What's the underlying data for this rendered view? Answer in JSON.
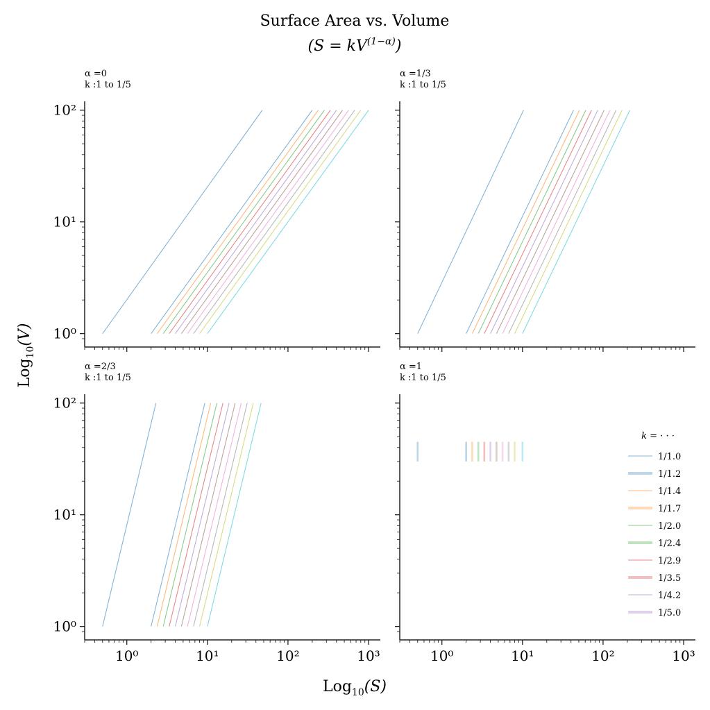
{
  "figure": {
    "title_line1": "Surface Area vs. Volume",
    "title_line2": "(S = kV",
    "title_line2_sup": "(1−α)",
    "title_line2_end": ")",
    "xlabel": "Log",
    "xlabel_sub": "10",
    "xlabel_arg": "(S)",
    "ylabel": "Log",
    "ylabel_sub": "10",
    "ylabel_arg": "(V)"
  },
  "legend": {
    "title": "k = · · ·",
    "entries": [
      "1/1.0",
      "1/1.2",
      "1/1.4",
      "1/1.7",
      "1/2.0",
      "1/2.4",
      "1/2.9",
      "1/3.5",
      "1/4.2",
      "1/5.0"
    ]
  },
  "colors": {
    "palette": [
      "#1f77b4",
      "#ff7f0e",
      "#2ca02c",
      "#d62728",
      "#9467bd",
      "#8c564b",
      "#e377c2",
      "#7f7f7f",
      "#bcbd22",
      "#17becf"
    ],
    "axis": "#222222"
  },
  "chart_data": [
    {
      "type": "line",
      "panel_title_alpha": "α =0",
      "panel_title_k": "k :1 to 1/5",
      "alpha": 0,
      "x_scale": "log",
      "y_scale": "log",
      "xlim": [
        0.3,
        1400
      ],
      "ylim": [
        0.85,
        120
      ],
      "xticks": [
        "10⁰",
        "10¹",
        "10²",
        "10³"
      ],
      "yticks": [
        "10⁰",
        "10¹",
        "10²"
      ],
      "series": [
        {
          "x": [
            0.5,
            48
          ],
          "y": [
            1,
            100
          ]
        },
        {
          "x": [
            2.0,
            200
          ],
          "y": [
            1,
            100
          ]
        },
        {
          "x": [
            2.38,
            238
          ],
          "y": [
            1,
            100
          ]
        },
        {
          "x": [
            2.83,
            283
          ],
          "y": [
            1,
            100
          ]
        },
        {
          "x": [
            3.36,
            336
          ],
          "y": [
            1,
            100
          ]
        },
        {
          "x": [
            4.0,
            400
          ],
          "y": [
            1,
            100
          ]
        },
        {
          "x": [
            4.76,
            476
          ],
          "y": [
            1,
            100
          ]
        },
        {
          "x": [
            5.66,
            566
          ],
          "y": [
            1,
            100
          ]
        },
        {
          "x": [
            6.73,
            673
          ],
          "y": [
            1,
            100
          ]
        },
        {
          "x": [
            8.0,
            800
          ],
          "y": [
            1,
            100
          ]
        },
        {
          "x": [
            10,
            1000
          ],
          "y": [
            1,
            100
          ]
        }
      ]
    },
    {
      "type": "line",
      "panel_title_alpha": "α =1/3",
      "panel_title_k": "k :1 to 1/5",
      "alpha": 0.333,
      "x_scale": "log",
      "y_scale": "log",
      "xlim": [
        0.3,
        1400
      ],
      "ylim": [
        0.85,
        120
      ],
      "xticks": [
        "10⁰",
        "10¹",
        "10²",
        "10³"
      ],
      "yticks": [
        "10⁰",
        "10¹",
        "10²"
      ],
      "series": [
        {
          "x": [
            0.5,
            10.3
          ],
          "y": [
            1,
            100
          ]
        },
        {
          "x": [
            2.0,
            43
          ],
          "y": [
            1,
            100
          ]
        },
        {
          "x": [
            2.38,
            51
          ],
          "y": [
            1,
            100
          ]
        },
        {
          "x": [
            2.83,
            61
          ],
          "y": [
            1,
            100
          ]
        },
        {
          "x": [
            3.36,
            72
          ],
          "y": [
            1,
            100
          ]
        },
        {
          "x": [
            4.0,
            86
          ],
          "y": [
            1,
            100
          ]
        },
        {
          "x": [
            4.76,
            103
          ],
          "y": [
            1,
            100
          ]
        },
        {
          "x": [
            5.66,
            122
          ],
          "y": [
            1,
            100
          ]
        },
        {
          "x": [
            6.73,
            145
          ],
          "y": [
            1,
            100
          ]
        },
        {
          "x": [
            8.0,
            172
          ],
          "y": [
            1,
            100
          ]
        },
        {
          "x": [
            10,
            215
          ],
          "y": [
            1,
            100
          ]
        }
      ]
    },
    {
      "type": "line",
      "panel_title_alpha": "α =2/3",
      "panel_title_k": "k :1 to 1/5",
      "alpha": 0.667,
      "x_scale": "log",
      "y_scale": "log",
      "xlim": [
        0.3,
        1400
      ],
      "ylim": [
        0.85,
        120
      ],
      "xticks": [
        "10⁰",
        "10¹",
        "10²",
        "10³"
      ],
      "yticks": [
        "10⁰",
        "10¹",
        "10²"
      ],
      "series": [
        {
          "x": [
            0.5,
            2.3
          ],
          "y": [
            1,
            100
          ]
        },
        {
          "x": [
            2.0,
            9.3
          ],
          "y": [
            1,
            100
          ]
        },
        {
          "x": [
            2.38,
            11.0
          ],
          "y": [
            1,
            100
          ]
        },
        {
          "x": [
            2.83,
            13.1
          ],
          "y": [
            1,
            100
          ]
        },
        {
          "x": [
            3.36,
            15.6
          ],
          "y": [
            1,
            100
          ]
        },
        {
          "x": [
            4.0,
            18.6
          ],
          "y": [
            1,
            100
          ]
        },
        {
          "x": [
            4.76,
            22.1
          ],
          "y": [
            1,
            100
          ]
        },
        {
          "x": [
            5.66,
            26.3
          ],
          "y": [
            1,
            100
          ]
        },
        {
          "x": [
            6.73,
            31.2
          ],
          "y": [
            1,
            100
          ]
        },
        {
          "x": [
            8.0,
            37.1
          ],
          "y": [
            1,
            100
          ]
        },
        {
          "x": [
            10,
            46.4
          ],
          "y": [
            1,
            100
          ]
        }
      ]
    },
    {
      "type": "line",
      "panel_title_alpha": "α =1",
      "panel_title_k": "k :1 to 1/5",
      "alpha": 1,
      "x_scale": "log",
      "y_scale": "log",
      "xlim": [
        0.3,
        1400
      ],
      "ylim": [
        0.85,
        120
      ],
      "xticks": [
        "10⁰",
        "10¹",
        "10²",
        "10³"
      ],
      "yticks": [
        "10⁰",
        "10¹",
        "10²"
      ],
      "legend_position": "right",
      "series": [
        {
          "x": [
            0.5,
            0.5
          ],
          "y": [
            30,
            45
          ]
        },
        {
          "x": [
            2.0,
            2.0
          ],
          "y": [
            30,
            45
          ]
        },
        {
          "x": [
            2.38,
            2.38
          ],
          "y": [
            30,
            45
          ]
        },
        {
          "x": [
            2.83,
            2.83
          ],
          "y": [
            30,
            45
          ]
        },
        {
          "x": [
            3.36,
            3.36
          ],
          "y": [
            30,
            45
          ]
        },
        {
          "x": [
            4.0,
            4.0
          ],
          "y": [
            30,
            45
          ]
        },
        {
          "x": [
            4.76,
            4.76
          ],
          "y": [
            30,
            45
          ]
        },
        {
          "x": [
            5.66,
            5.66
          ],
          "y": [
            30,
            45
          ]
        },
        {
          "x": [
            6.73,
            6.73
          ],
          "y": [
            30,
            45
          ]
        },
        {
          "x": [
            8.0,
            8.0
          ],
          "y": [
            30,
            45
          ]
        },
        {
          "x": [
            10,
            10
          ],
          "y": [
            30,
            45
          ]
        }
      ]
    }
  ]
}
